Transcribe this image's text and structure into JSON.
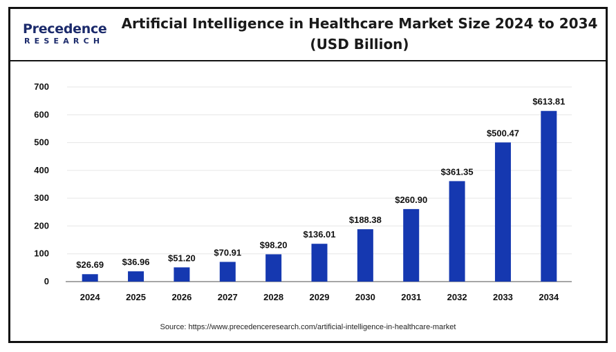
{
  "logo": {
    "name": "Precedence",
    "sub": "RESEARCH"
  },
  "title_line1": "Artificial Intelligence in Healthcare Market Size 2024 to 2034",
  "title_line2": "(USD Billion)",
  "source": "Source: https://www.precedenceresearch.com/artificial-intelligence-in-healthcare-market",
  "colors": {
    "bar": "#1538b0",
    "axis": "#888888",
    "grid": "#e6e6e6"
  },
  "chart_data": {
    "type": "bar",
    "title": "Artificial Intelligence in Healthcare Market Size 2024 to 2034 (USD Billion)",
    "xlabel": "",
    "ylabel": "",
    "ylim": [
      0,
      700
    ],
    "yticks": [
      0,
      100,
      200,
      300,
      400,
      500,
      600,
      700
    ],
    "categories": [
      "2024",
      "2025",
      "2026",
      "2027",
      "2028",
      "2029",
      "2030",
      "2031",
      "2032",
      "2033",
      "2034"
    ],
    "values": [
      26.69,
      36.96,
      51.2,
      70.91,
      98.2,
      136.01,
      188.38,
      260.9,
      361.35,
      500.47,
      613.81
    ],
    "data_labels": [
      "$26.69",
      "$36.96",
      "$51.20",
      "$70.91",
      "$98.20",
      "$136.01",
      "$188.38",
      "$260.90",
      "$361.35",
      "$500.47",
      "$613.81"
    ]
  }
}
